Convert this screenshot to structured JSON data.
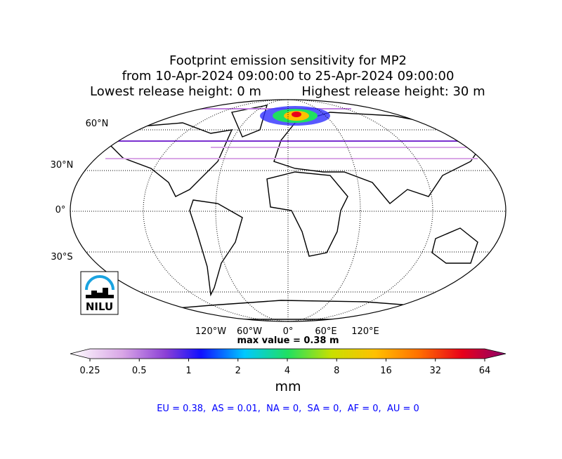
{
  "header": {
    "title": "Footprint emission sensitivity for MP2",
    "period": "from 10-Apr-2024 09:00:00 to 25-Apr-2024 09:00:00",
    "lowest": "Lowest release height: 0 m",
    "highest": "Highest release height: 30 m"
  },
  "map": {
    "lat_labels": [
      "60°N",
      "30°N",
      "0°",
      "30°S"
    ],
    "lon_labels": [
      "120°W",
      "60°W",
      "0°",
      "60°E",
      "120°E"
    ],
    "max_value": "max value = 0.38 m",
    "logo": "NILU"
  },
  "colorbar": {
    "scale": "log",
    "lim": [
      0.25,
      64
    ],
    "ticks": [
      0.25,
      0.5,
      1,
      2,
      4,
      8,
      16,
      32,
      64
    ],
    "label": "mm"
  },
  "stats": "EU = 0.38,  AS = 0.01,  NA = 0,  SA = 0,  AF = 0,  AU = 0"
}
